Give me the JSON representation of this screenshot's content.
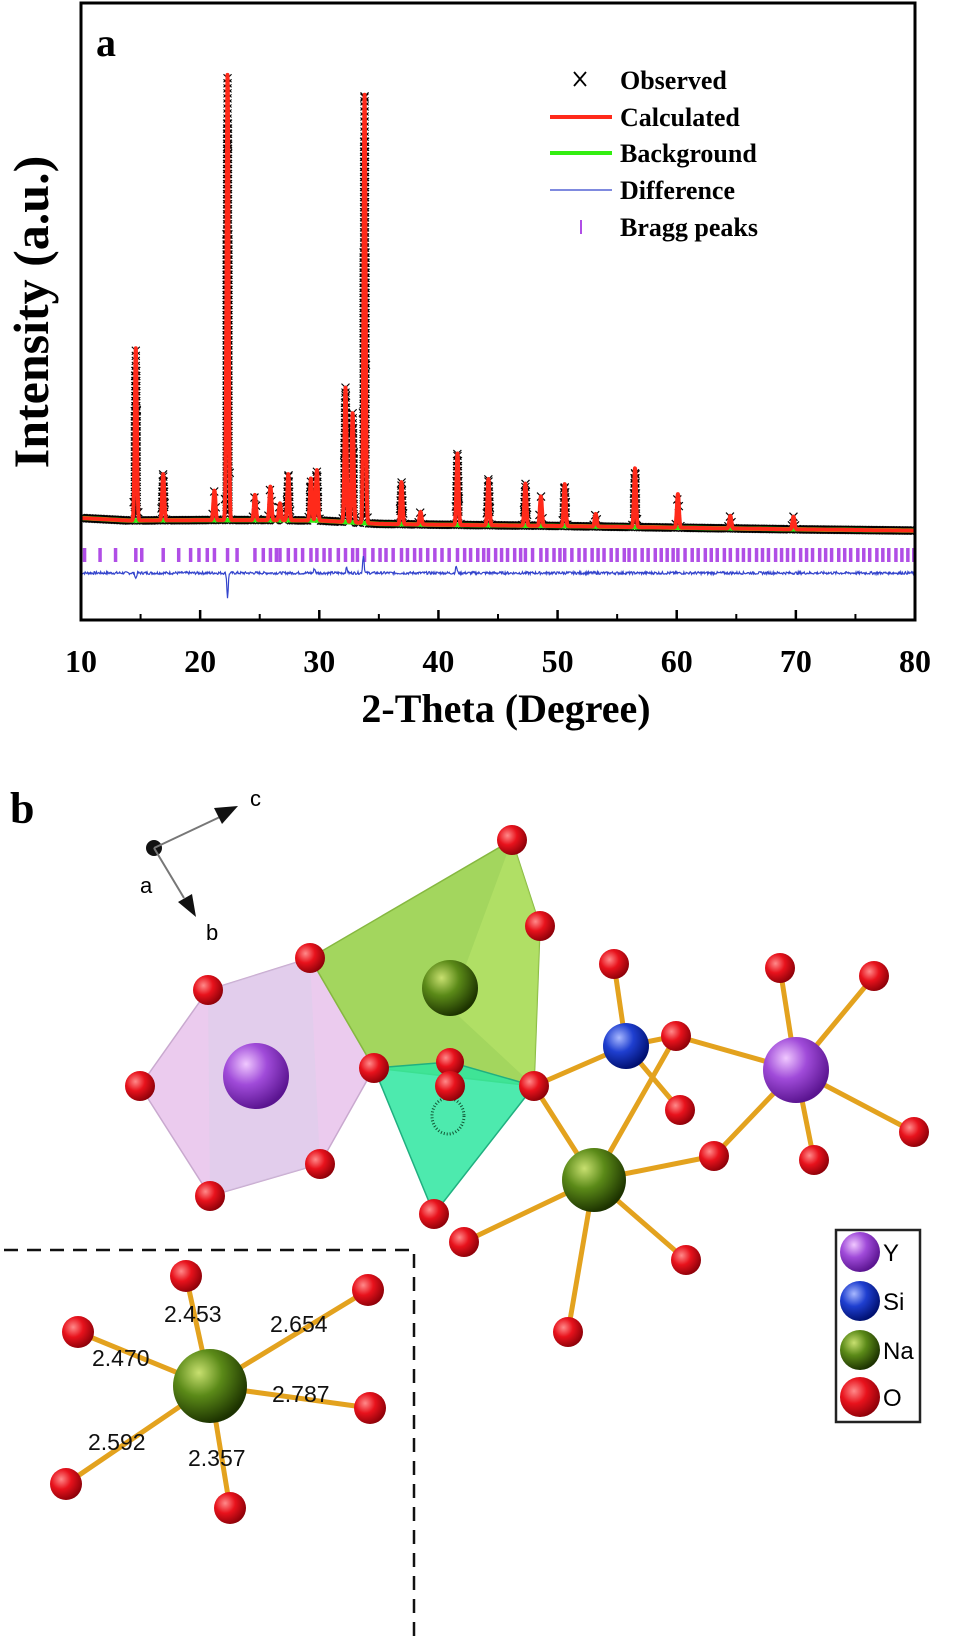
{
  "panel_a": {
    "label": "a",
    "chart_data": {
      "type": "line",
      "xlabel": "2-Theta (Degree)",
      "ylabel": "Intensity (a.u.)",
      "xlim": [
        10,
        80
      ],
      "x_ticks": [
        10,
        20,
        30,
        40,
        50,
        60,
        70,
        80
      ],
      "y_ticks_shown": false,
      "legend_placement": "top-right",
      "legend": [
        {
          "name": "Observed",
          "marker": "x",
          "color": "#000000"
        },
        {
          "name": "Calculated",
          "marker": "line",
          "color": "#ff2a1a"
        },
        {
          "name": "Background",
          "marker": "line",
          "color": "#33ee11"
        },
        {
          "name": "Difference",
          "marker": "thin-line",
          "color": "#3344cc"
        },
        {
          "name": "Bragg peaks",
          "marker": "tick",
          "color": "#b04ee6"
        }
      ],
      "y_scale": "arbitrary units (relative intensity, baseline background ~1.0)",
      "background": {
        "x": [
          10,
          14,
          20,
          25,
          30,
          35,
          40,
          50,
          60,
          70,
          80
        ],
        "values": [
          1.0,
          0.94,
          0.95,
          0.95,
          0.94,
          0.86,
          0.84,
          0.81,
          0.77,
          0.73,
          0.7
        ]
      },
      "peaks": [
        {
          "x": 14.6,
          "height": 4.1
        },
        {
          "x": 16.9,
          "height": 1.1
        },
        {
          "x": 21.2,
          "height": 0.7
        },
        {
          "x": 22.3,
          "height": 10.6
        },
        {
          "x": 24.6,
          "height": 0.6
        },
        {
          "x": 25.9,
          "height": 0.8
        },
        {
          "x": 26.7,
          "height": 0.4
        },
        {
          "x": 27.4,
          "height": 1.1
        },
        {
          "x": 29.3,
          "height": 1.0
        },
        {
          "x": 29.8,
          "height": 1.2
        },
        {
          "x": 32.2,
          "height": 3.2
        },
        {
          "x": 32.8,
          "height": 2.6
        },
        {
          "x": 33.8,
          "height": 10.2
        },
        {
          "x": 36.9,
          "height": 1.0
        },
        {
          "x": 38.5,
          "height": 0.3
        },
        {
          "x": 41.6,
          "height": 1.7
        },
        {
          "x": 44.2,
          "height": 1.1
        },
        {
          "x": 47.3,
          "height": 1.0
        },
        {
          "x": 48.6,
          "height": 0.7
        },
        {
          "x": 50.6,
          "height": 1.0
        },
        {
          "x": 53.2,
          "height": 0.3
        },
        {
          "x": 56.5,
          "height": 1.4
        },
        {
          "x": 60.1,
          "height": 0.8
        },
        {
          "x": 64.5,
          "height": 0.3
        },
        {
          "x": 69.8,
          "height": 0.3
        }
      ],
      "bragg_peak_positions": [
        10.3,
        11.6,
        12.9,
        14.6,
        15.1,
        16.9,
        18.2,
        19.2,
        19.9,
        20.6,
        21.2,
        22.3,
        23.1,
        24.6,
        25.3,
        25.9,
        26.4,
        26.7,
        27.4,
        28.0,
        28.6,
        29.3,
        29.8,
        30.4,
        30.9,
        31.6,
        32.2,
        32.8,
        33.2,
        33.8,
        34.5,
        35.1,
        35.6,
        36.2,
        36.9,
        37.4,
        38.0,
        38.5,
        39.1,
        39.7,
        40.3,
        40.9,
        41.6,
        42.2,
        42.7,
        43.3,
        43.8,
        44.2,
        44.8,
        45.3,
        45.8,
        46.4,
        46.9,
        47.3,
        47.9,
        48.6,
        49.1,
        49.7,
        50.2,
        50.6,
        51.2,
        51.8,
        52.3,
        52.9,
        53.4,
        53.9,
        54.5,
        55.0,
        55.6,
        56.0,
        56.5,
        57.1,
        57.6,
        58.2,
        58.7,
        59.2,
        59.7,
        60.1,
        60.7,
        61.3,
        61.8,
        62.4,
        62.9,
        63.4,
        64.0,
        64.5,
        65.1,
        65.6,
        66.1,
        66.7,
        67.2,
        67.7,
        68.3,
        68.8,
        69.3,
        69.8,
        70.4,
        70.9,
        71.4,
        72.0,
        72.5,
        73.0,
        73.6,
        74.1,
        74.6,
        75.2,
        75.7,
        76.2,
        76.8,
        77.3,
        77.8,
        78.4,
        78.9,
        79.4,
        79.9
      ],
      "difference_spikes": [
        {
          "x": 14.6,
          "value": -0.12
        },
        {
          "x": 22.3,
          "value": -0.55
        },
        {
          "x": 29.6,
          "value": 0.1
        },
        {
          "x": 32.3,
          "value": 0.12
        },
        {
          "x": 33.7,
          "value": 0.4
        },
        {
          "x": 41.5,
          "value": 0.15
        }
      ]
    }
  },
  "panel_b": {
    "label": "b",
    "axes": {
      "a": "a",
      "b": "b",
      "c": "c"
    },
    "legend": [
      {
        "name": "Y",
        "color": "#a04bd9"
      },
      {
        "name": "Si",
        "color": "#1f3fd0"
      },
      {
        "name": "Na",
        "color": "#4e7d12"
      },
      {
        "name": "O",
        "color": "#e0101a"
      }
    ],
    "bond_lengths": [
      "2.453",
      "2.654",
      "2.470",
      "2.787",
      "2.592",
      "2.357"
    ]
  }
}
